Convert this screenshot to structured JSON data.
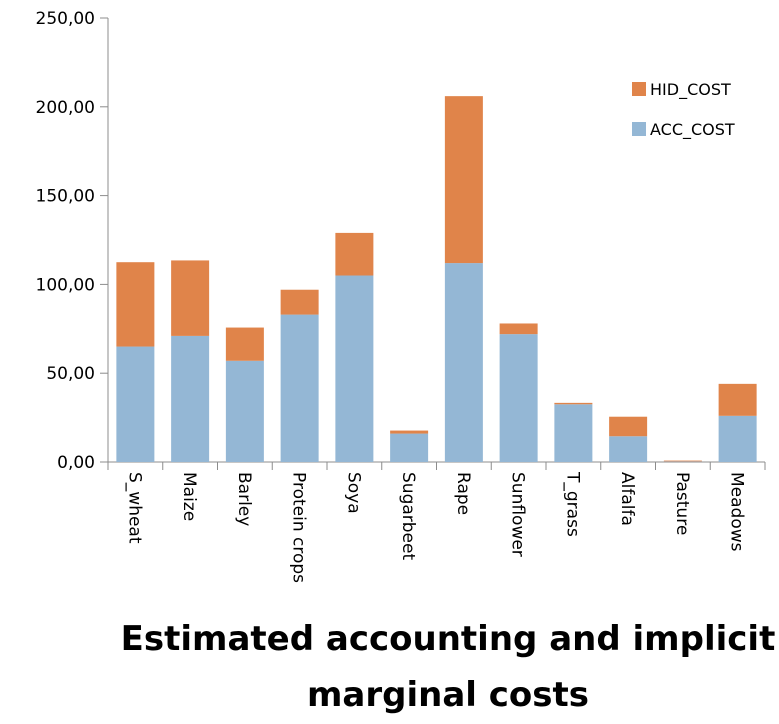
{
  "chart_data": {
    "type": "bar",
    "stacked": true,
    "title_lines": [
      "Estimated accounting and implicit",
      "marginal costs"
    ],
    "categories": [
      "S_wheat",
      "Maize",
      "Barley",
      "Protein crops",
      "Soya",
      "Sugarbeet",
      "Rape",
      "Sunflower",
      "T_grass",
      "Alfalfa",
      "Pasture",
      "Meadows"
    ],
    "series": [
      {
        "name": "ACC_COST",
        "color": "#94B7D5",
        "values": [
          65,
          71,
          57,
          83,
          105,
          16,
          112,
          72,
          32.5,
          14.5,
          0.3,
          26
        ]
      },
      {
        "name": "HID_COST",
        "color": "#E0844A",
        "values": [
          47.5,
          42.5,
          18.7,
          14,
          24,
          1.7,
          94,
          6,
          0.8,
          11,
          0.5,
          18
        ]
      }
    ],
    "ylim": [
      0,
      250
    ],
    "yticks": [
      0,
      50,
      100,
      150,
      200,
      250
    ],
    "ytick_labels": [
      "0,00",
      "50,00",
      "100,00",
      "150,00",
      "200,00",
      "250,00"
    ],
    "legend": {
      "placement": "top-right",
      "order": [
        "HID_COST",
        "ACC_COST"
      ]
    },
    "grid": false
  }
}
